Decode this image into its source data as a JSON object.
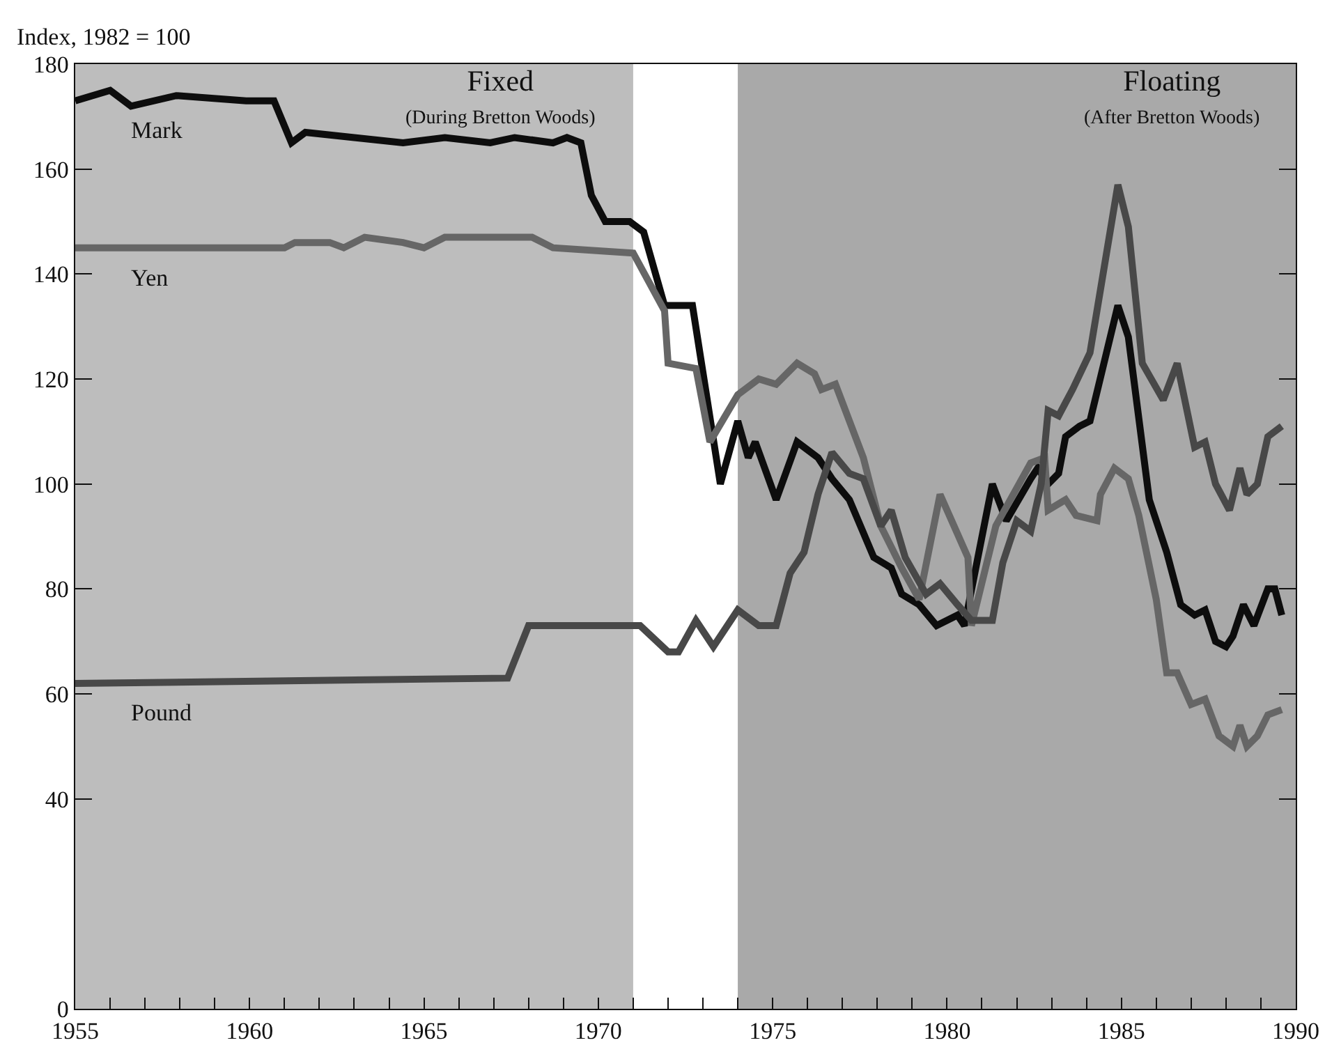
{
  "chart_data": {
    "type": "line",
    "ylabel": "Index, 1982 = 100",
    "legend": false,
    "grid": false,
    "marker": "none",
    "line_style": "solid",
    "xlim": [
      1955,
      1990
    ],
    "xticks": [
      1955,
      {
        "value": 1956,
        "label": null
      },
      {
        "value": 1957,
        "label": null
      },
      {
        "value": 1958,
        "label": null
      },
      {
        "value": 1959,
        "label": null
      },
      1960,
      {
        "value": 1961,
        "label": null
      },
      {
        "value": 1962,
        "label": null
      },
      {
        "value": 1963,
        "label": null
      },
      {
        "value": 1964,
        "label": null
      },
      1965,
      {
        "value": 1966,
        "label": null
      },
      {
        "value": 1967,
        "label": null
      },
      {
        "value": 1968,
        "label": null
      },
      {
        "value": 1969,
        "label": null
      },
      1970,
      {
        "value": 1971,
        "label": null
      },
      {
        "value": 1972,
        "label": null
      },
      {
        "value": 1973,
        "label": null
      },
      {
        "value": 1974,
        "label": null
      },
      1975,
      {
        "value": 1976,
        "label": null
      },
      {
        "value": 1977,
        "label": null
      },
      {
        "value": 1978,
        "label": null
      },
      {
        "value": 1979,
        "label": null
      },
      1980,
      {
        "value": 1981,
        "label": null
      },
      {
        "value": 1982,
        "label": null
      },
      {
        "value": 1983,
        "label": null
      },
      {
        "value": 1984,
        "label": null
      },
      1985,
      {
        "value": 1986,
        "label": null
      },
      {
        "value": 1987,
        "label": null
      },
      {
        "value": 1988,
        "label": null
      },
      {
        "value": 1989,
        "label": null
      },
      1990
    ],
    "ylim": [
      0,
      180
    ],
    "yticks": [
      0,
      40,
      60,
      80,
      100,
      120,
      140,
      160,
      180
    ],
    "bands": [
      {
        "axis": "x",
        "from": 1955,
        "to": 1971,
        "label": "Fixed\n(During Bretton Woods)",
        "color": "#bdbdbd"
      },
      {
        "axis": "x",
        "from": 1974,
        "to": 1990,
        "label": "Floating\n(After Bretton Woods)",
        "color": "#a9a9a9"
      }
    ],
    "series": [
      {
        "name": "Mark",
        "color": "#0d0d0d",
        "x": [
          1955,
          1956,
          1956.6,
          1957.9,
          1959.9,
          1960.7,
          1961.2,
          1961.6,
          1963,
          1964.4,
          1965.6,
          1966.9,
          1967.6,
          1968.7,
          1969.1,
          1969.5,
          1969.8,
          1970.2,
          1970.9,
          1971.3,
          1971.9,
          1972.7,
          1973.5,
          1974,
          1974.3,
          1974.5,
          1975.1,
          1975.7,
          1976.3,
          1976.7,
          1977.2,
          1977.9,
          1978.4,
          1978.7,
          1979.2,
          1979.7,
          1980.3,
          1980.5,
          1981.3,
          1981.7,
          1982.4,
          1982.6,
          1982.9,
          1983.2,
          1983.4,
          1983.8,
          1984.1,
          1984.9,
          1985.2,
          1985.8,
          1986.3,
          1986.7,
          1987.1,
          1987.4,
          1987.7,
          1988,
          1988.2,
          1988.5,
          1988.8,
          1989.2,
          1989.4,
          1989.6
        ],
        "values": [
          173,
          175,
          172,
          174,
          173,
          173,
          165,
          167,
          166,
          165,
          166,
          165,
          166,
          165,
          166,
          165,
          155,
          150,
          150,
          148,
          134,
          134,
          100,
          112,
          105,
          108,
          97,
          108,
          105,
          101,
          97,
          86,
          84,
          79,
          77,
          73,
          75,
          73,
          100,
          93,
          101,
          103,
          100,
          102,
          109,
          111,
          112,
          134,
          128,
          97,
          87,
          77,
          75,
          76,
          70,
          69,
          71,
          77,
          73,
          80,
          80,
          75
        ]
      },
      {
        "name": "Yen",
        "color": "#666666",
        "x": [
          1955,
          1959.7,
          1961,
          1961.3,
          1962.3,
          1962.7,
          1963.3,
          1964.4,
          1965,
          1965.6,
          1968.1,
          1968.7,
          1971,
          1971.9,
          1972,
          1972.8,
          1973.2,
          1974,
          1974.6,
          1975.1,
          1975.7,
          1976.2,
          1976.4,
          1976.8,
          1977.6,
          1978.1,
          1978.7,
          1979.2,
          1979.8,
          1980.6,
          1980.7,
          1981.4,
          1982.4,
          1982.8,
          1982.9,
          1983.4,
          1983.7,
          1984.3,
          1984.4,
          1984.8,
          1985.2,
          1985.5,
          1986,
          1986.3,
          1986.6,
          1987,
          1987.4,
          1987.8,
          1988.2,
          1988.4,
          1988.6,
          1988.9,
          1989.2,
          1989.6
        ],
        "values": [
          145,
          145,
          145,
          146,
          146,
          145,
          147,
          146,
          145,
          147,
          147,
          145,
          144,
          133,
          123,
          122,
          108,
          117,
          120,
          119,
          123,
          121,
          118,
          119,
          105,
          92,
          84,
          78,
          98,
          86,
          73,
          92,
          104,
          105,
          95,
          97,
          94,
          93,
          98,
          103,
          101,
          94,
          78,
          64,
          64,
          58,
          59,
          52,
          50,
          54,
          50,
          52,
          56,
          57
        ]
      },
      {
        "name": "Pound",
        "color": "#484848",
        "x": [
          1955,
          1967.4,
          1968,
          1968.7,
          1970.6,
          1971.2,
          1972,
          1972.3,
          1972.8,
          1973.3,
          1974,
          1974.6,
          1975.1,
          1975.5,
          1975.9,
          1976.3,
          1976.7,
          1977.2,
          1977.6,
          1978.1,
          1978.4,
          1978.8,
          1979.4,
          1979.8,
          1980.3,
          1980.7,
          1981.3,
          1981.6,
          1982,
          1982.4,
          1982.7,
          1982.9,
          1983.2,
          1983.6,
          1984.1,
          1984.9,
          1985.2,
          1985.6,
          1986.2,
          1986.6,
          1987.1,
          1987.4,
          1987.7,
          1988.1,
          1988.4,
          1988.6,
          1988.9,
          1989.2,
          1989.6
        ],
        "values": [
          62,
          63,
          73,
          73,
          73,
          73,
          68,
          68,
          74,
          69,
          76,
          73,
          73,
          83,
          87,
          98,
          106,
          102,
          101,
          92,
          95,
          86,
          79,
          81,
          77,
          74,
          74,
          85,
          93,
          91,
          100,
          114,
          113,
          118,
          125,
          157,
          149,
          123,
          116,
          123,
          107,
          108,
          100,
          95,
          103,
          98,
          100,
          109,
          111
        ]
      }
    ]
  }
}
